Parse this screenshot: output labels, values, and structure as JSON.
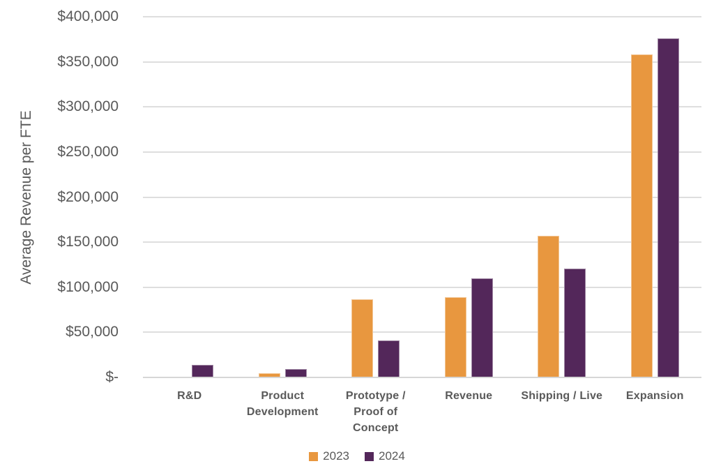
{
  "chart_data": {
    "type": "bar",
    "title": "",
    "xlabel": "",
    "ylabel": "Average Revenue per FTE",
    "categories": [
      "R&D",
      "Product Development",
      "Prototype / Proof of Concept",
      "Revenue",
      "Shipping / Live",
      "Expansion"
    ],
    "category_display": [
      "R&D",
      "Product\nDevelopment",
      "Prototype /\nProof of\nConcept",
      "Revenue",
      "Shipping / Live",
      "Expansion"
    ],
    "series": [
      {
        "name": "2023",
        "color": "#E8973F",
        "values": [
          0,
          5000,
          87000,
          89000,
          157000,
          358000
        ]
      },
      {
        "name": "2024",
        "color": "#53275A",
        "values": [
          14000,
          9000,
          41000,
          110000,
          121000,
          376000
        ]
      }
    ],
    "y_axis": {
      "min": 0,
      "max": 400000,
      "step": 50000,
      "tick_labels": [
        "$-",
        "$50,000",
        "$100,000",
        "$150,000",
        "$200,000",
        "$250,000",
        "$300,000",
        "$350,000",
        "$400,000"
      ]
    },
    "grid": true,
    "legend_position": "bottom",
    "colors": {
      "gridline": "#DEDEDE",
      "axis_line": "#D6D6D6",
      "text": "#595959",
      "background": "#FFFFFF"
    }
  }
}
